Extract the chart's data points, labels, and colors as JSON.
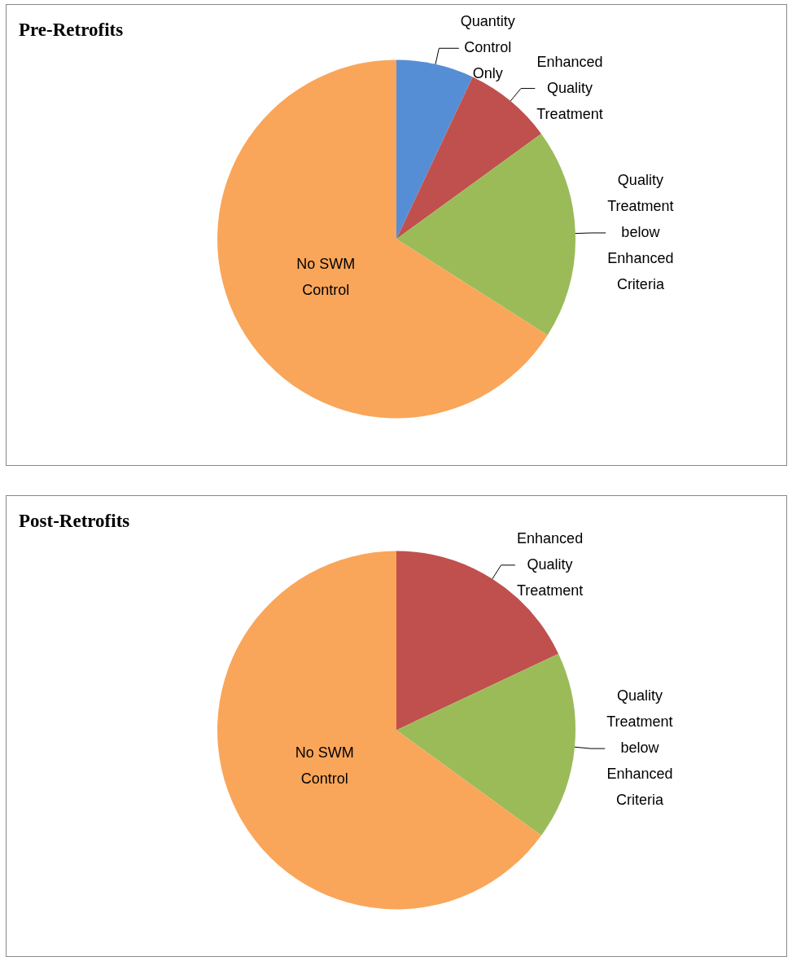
{
  "chart_data": [
    {
      "type": "pie",
      "title": "Pre-Retrofits",
      "categories": [
        "Quantity Control Only",
        "Enhanced Quality Treatment",
        "Quality Treatment below Enhanced Criteria",
        "No SWM Control"
      ],
      "values": [
        7,
        8,
        19,
        66
      ],
      "colors": [
        "#558ed5",
        "#c0504d",
        "#9bbb59",
        "#f9a65a"
      ],
      "legend": false
    },
    {
      "type": "pie",
      "title": "Post-Retrofits",
      "categories": [
        "Enhanced Quality Treatment",
        "Quality Treatment below Enhanced Criteria",
        "No SWM Control"
      ],
      "values": [
        18,
        17,
        65
      ],
      "colors": [
        "#c0504d",
        "#9bbb59",
        "#f9a65a"
      ],
      "legend": false
    }
  ]
}
